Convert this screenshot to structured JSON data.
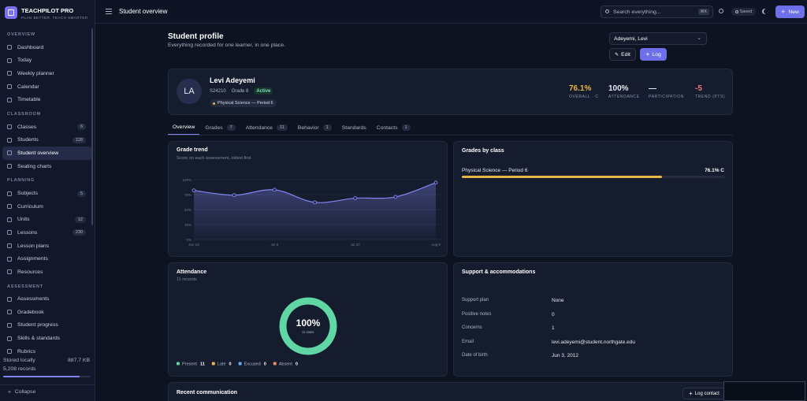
{
  "sidebar": {
    "brand": "TEACHPILOT PRO",
    "tagline": "PLAN BETTER. TEACH SMARTER",
    "sections": [
      {
        "title": "OVERVIEW",
        "items": [
          {
            "label": "Dashboard"
          },
          {
            "label": "Today"
          },
          {
            "label": "Weekly planner"
          },
          {
            "label": "Calendar"
          },
          {
            "label": "Timetable"
          }
        ]
      },
      {
        "title": "CLASSROOM",
        "items": [
          {
            "label": "Classes",
            "count": "6"
          },
          {
            "label": "Students",
            "count": "128"
          },
          {
            "label": "Student overview",
            "active": true
          },
          {
            "label": "Seating charts"
          }
        ]
      },
      {
        "title": "PLANNING",
        "items": [
          {
            "label": "Subjects",
            "count": "5"
          },
          {
            "label": "Curriculum"
          },
          {
            "label": "Units",
            "count": "12"
          },
          {
            "label": "Lessons",
            "count": "230"
          },
          {
            "label": "Lesson plans"
          },
          {
            "label": "Assignments"
          },
          {
            "label": "Resources"
          }
        ]
      },
      {
        "title": "ASSESSMENT",
        "items": [
          {
            "label": "Assessments"
          },
          {
            "label": "Gradebook"
          },
          {
            "label": "Student progress"
          },
          {
            "label": "Skills & standards"
          },
          {
            "label": "Rubrics"
          }
        ]
      }
    ],
    "storage": {
      "label": "Stored locally",
      "size": "887.7 KB",
      "records": "5,208 records"
    },
    "collapse": "Collapse"
  },
  "topbar": {
    "title": "Student overview",
    "search_placeholder": "Search everything...",
    "shortcut": "⌘K",
    "saved": "Saved",
    "new": "New"
  },
  "header": {
    "title": "Student profile",
    "subtitle": "Everything recorded for one learner, in one place.",
    "student_select": "Adeyemi, Levi",
    "edit": "Edit",
    "log": "Log"
  },
  "profile": {
    "initials": "LA",
    "name": "Levi Adeyemi",
    "id": "S24210",
    "grade": "Grade 8",
    "status": "Active",
    "class": "Physical Science — Period 6",
    "stats": [
      {
        "value": "76.1%",
        "label": "OVERALL · C",
        "color": "#e9b449"
      },
      {
        "value": "100%",
        "label": "ATTENDANCE",
        "color": "#e6e8f0"
      },
      {
        "value": "—",
        "label": "PARTICIPATION",
        "color": "#e6e8f0"
      },
      {
        "value": "-5",
        "label": "TREND (PTS)",
        "color": "#f07a7a"
      }
    ]
  },
  "tabs": [
    {
      "label": "Overview",
      "active": true
    },
    {
      "label": "Grades",
      "count": "7"
    },
    {
      "label": "Attendance",
      "count": "11"
    },
    {
      "label": "Behavior",
      "count": "1"
    },
    {
      "label": "Standards"
    },
    {
      "label": "Contacts",
      "count": "1"
    }
  ],
  "chart_data": {
    "type": "line",
    "title": "Grade trend",
    "subtitle": "Score on each assessment, oldest first",
    "categories": [
      "Jun 24",
      null,
      "Jul 6",
      null,
      "Jul 20",
      null,
      "Aug 9"
    ],
    "values": [
      82,
      74,
      83,
      62,
      69,
      71,
      95
    ],
    "color": "#8286f2",
    "ylim": [
      0,
      100
    ],
    "yticks": [
      {
        "value": 0,
        "label": "0%"
      },
      {
        "value": 25,
        "label": "25%"
      },
      {
        "value": 50,
        "label": "50%"
      },
      {
        "value": 75,
        "label": "75%"
      },
      {
        "value": 100,
        "label": "100%"
      }
    ],
    "grid": true
  },
  "grades_by_class": {
    "title": "Grades by class",
    "xlim": [
      0,
      100
    ],
    "rows": [
      {
        "name": "Physical Science — Period 6",
        "value": 76.1,
        "value_label": "76.1% C",
        "color": "#e9b449"
      }
    ]
  },
  "attendance": {
    "type": "donut",
    "title": "Attendance",
    "subtitle": "11 records",
    "center_label": "100%",
    "center_sublabel": "in class",
    "categories": [
      "Present",
      "Late",
      "Excused",
      "Absent"
    ],
    "values": [
      11,
      0,
      0,
      0
    ],
    "colors": [
      "#5fd6a4",
      "#e9b449",
      "#6fa8f0",
      "#f08a6a"
    ]
  },
  "support": {
    "title": "Support & accommodations",
    "rows": [
      {
        "label": "Support plan",
        "value": "None"
      },
      {
        "label": "Positive notes",
        "value": "0"
      },
      {
        "label": "Concerns",
        "value": "1"
      },
      {
        "label": "Email",
        "value": "levi.adeyemi@student.northgate.edu"
      },
      {
        "label": "Date of birth",
        "value": "Jun 3, 2012"
      }
    ]
  },
  "communication": {
    "title": "Recent communication",
    "action": "Log contact"
  }
}
